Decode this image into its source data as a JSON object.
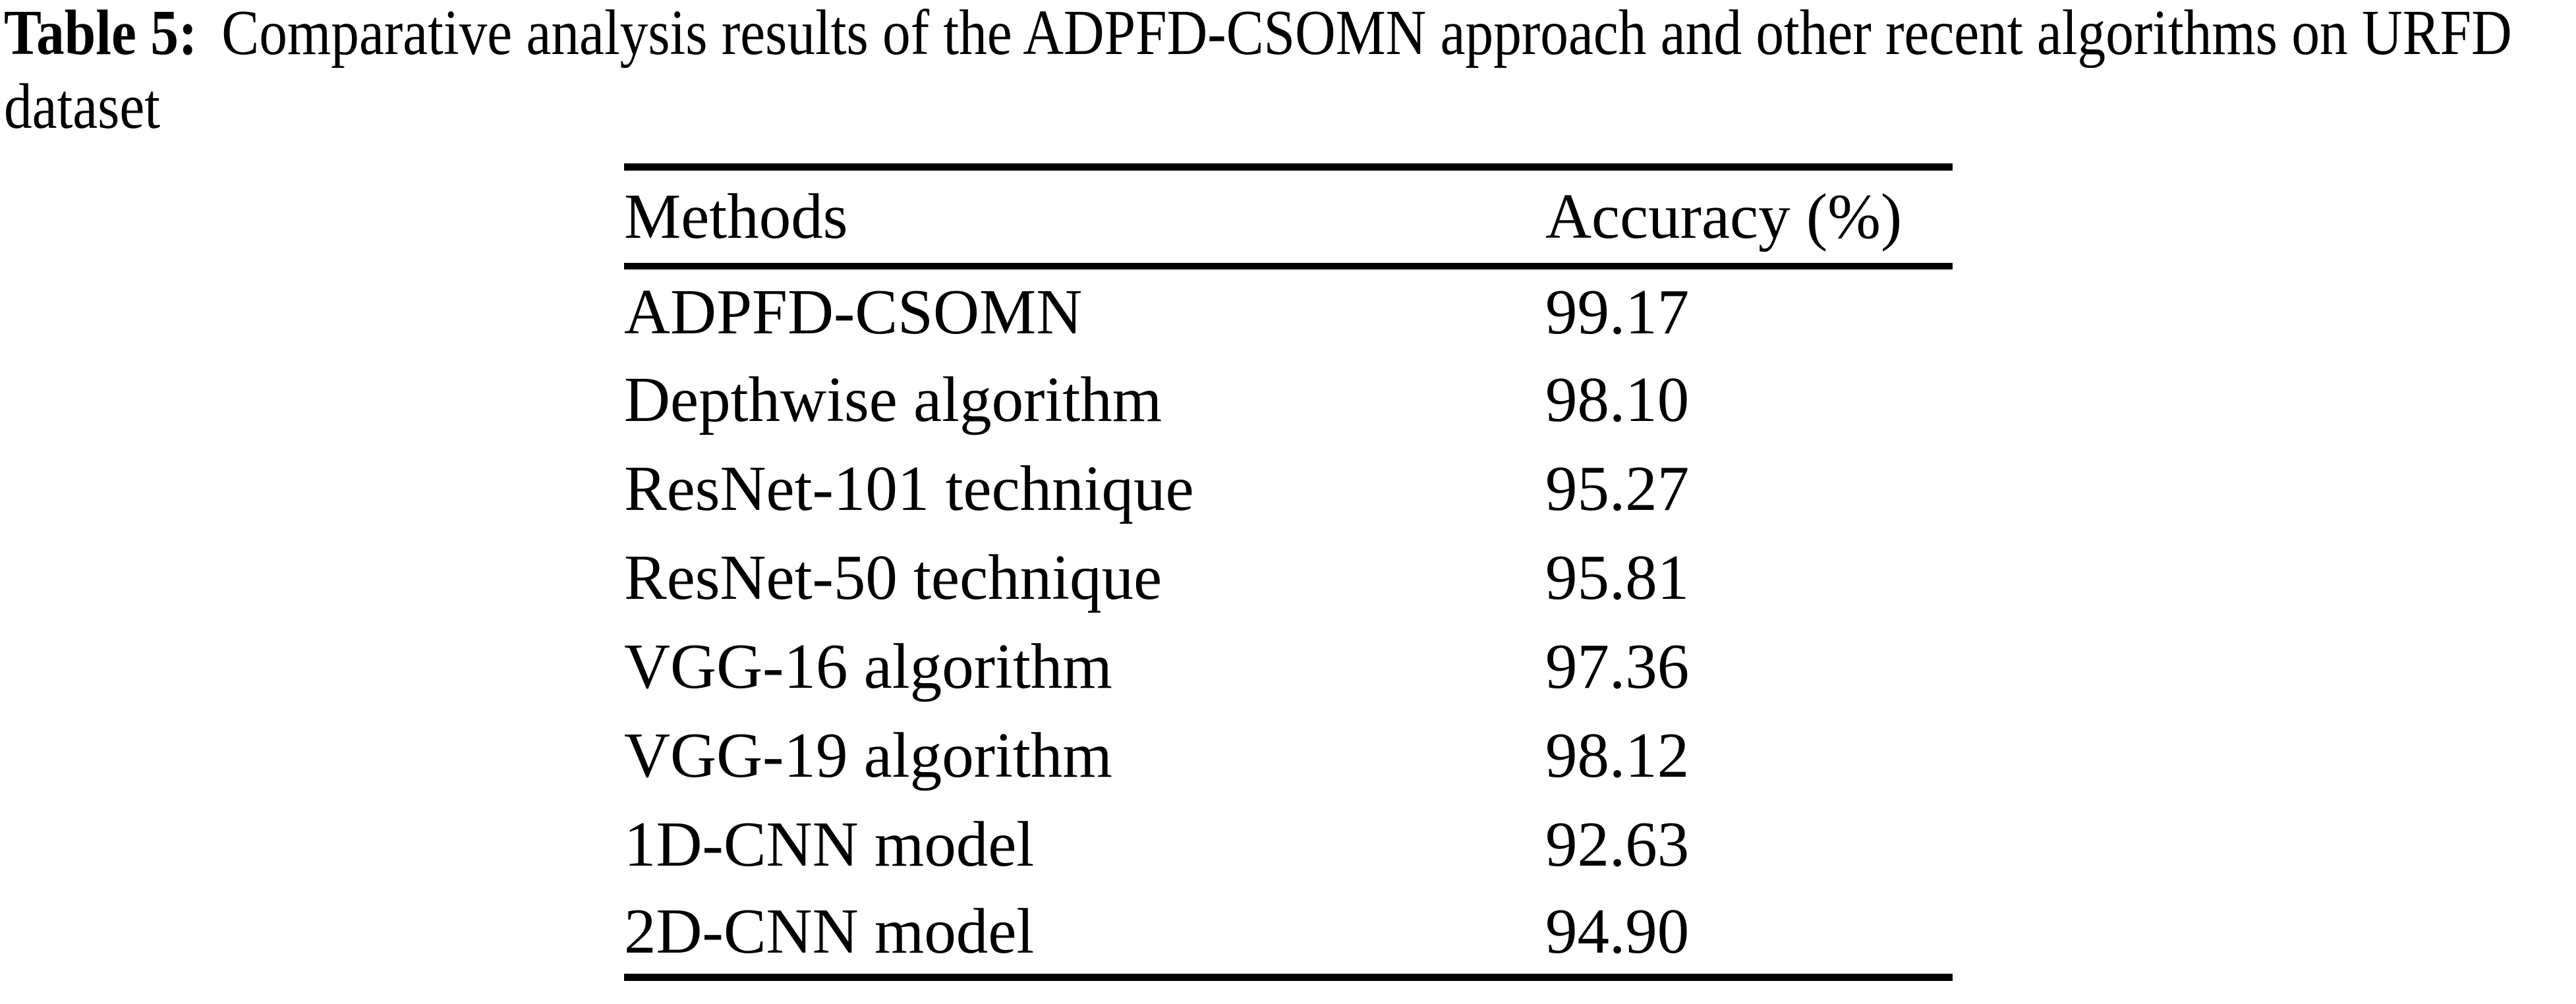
{
  "caption": {
    "label": "Table 5:",
    "line1": "Comparative analysis results of the ADPFD-CSOMN approach and other recent algorithms on URFD",
    "line2": "dataset"
  },
  "table": {
    "columns": [
      "Methods",
      "Accuracy (%)"
    ],
    "rows": [
      {
        "method": "ADPFD-CSOMN",
        "accuracy": "99.17"
      },
      {
        "method": "Depthwise algorithm",
        "accuracy": "98.10"
      },
      {
        "method": "ResNet-101 technique",
        "accuracy": "95.27"
      },
      {
        "method": "ResNet-50 technique",
        "accuracy": "95.81"
      },
      {
        "method": "VGG-16 algorithm",
        "accuracy": "97.36"
      },
      {
        "method": "VGG-19 algorithm",
        "accuracy": "98.12"
      },
      {
        "method": "1D-CNN model",
        "accuracy": "92.63"
      },
      {
        "method": "2D-CNN model",
        "accuracy": "94.90"
      }
    ]
  },
  "colors": {
    "text": "#000000",
    "background": "#ffffff",
    "rule": "#000000"
  }
}
